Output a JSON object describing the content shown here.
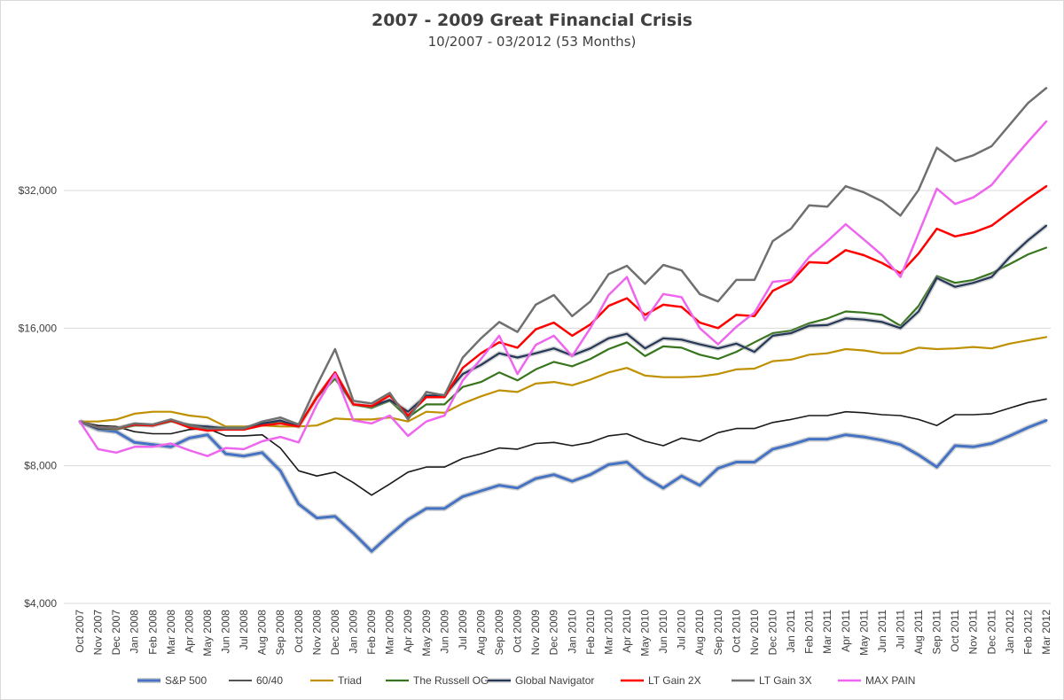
{
  "chart_data": {
    "type": "line",
    "title": "2007  - 2009 Great Financial Crisis",
    "subtitle": "10/2007 - 03/2012 (53 Months)",
    "xlabel": "",
    "ylabel": "",
    "y_scale": "log2",
    "ylim": [
      4000,
      64000
    ],
    "y_ticks": [
      4000,
      8000,
      16000,
      32000
    ],
    "y_tick_labels": [
      "$4,000",
      "$8,000",
      "$16,000",
      "$32,000"
    ],
    "grid": "horizontal",
    "legend_position": "bottom",
    "categories": [
      "Oct 2007",
      "Nov 2007",
      "Dec 2007",
      "Jan 2008",
      "Feb 2008",
      "Mar 2008",
      "Apr 2008",
      "May 2008",
      "Jun 2008",
      "Jul 2008",
      "Aug 2008",
      "Sep 2008",
      "Oct 2008",
      "Nov 2008",
      "Dec 2008",
      "Jan 2009",
      "Feb 2009",
      "Mar 2009",
      "Apr 2009",
      "May 2009",
      "Jun 2009",
      "Jul 2009",
      "Aug 2009",
      "Sep 2009",
      "Oct 2009",
      "Nov 2009",
      "Dec 2009",
      "Jan 2010",
      "Feb 2010",
      "Mar 2010",
      "Apr 2010",
      "May 2010",
      "Jun 2010",
      "Jul 2010",
      "Aug 2010",
      "Sep 2010",
      "Oct 2010",
      "Nov 2010",
      "Dec 2010",
      "Jan 2011",
      "Feb 2011",
      "Mar 2011",
      "Apr 2011",
      "May 2011",
      "Jun 2011",
      "Jul 2011",
      "Aug 2011",
      "Sep 2011",
      "Oct 2011",
      "Nov 2011",
      "Dec 2011",
      "Jan 2012",
      "Feb 2012",
      "Mar 2012"
    ],
    "series": [
      {
        "name": "S&P 500",
        "color": "#4472c4",
        "width": 3,
        "halo": true,
        "values": [
          10000,
          9600,
          9500,
          9000,
          8900,
          8800,
          9200,
          9350,
          8500,
          8400,
          8550,
          7800,
          6600,
          6150,
          6200,
          5700,
          5200,
          5650,
          6100,
          6450,
          6450,
          6850,
          7050,
          7250,
          7150,
          7500,
          7650,
          7400,
          7650,
          8050,
          8150,
          7550,
          7150,
          7600,
          7250,
          7900,
          8150,
          8150,
          8700,
          8900,
          9150,
          9150,
          9350,
          9250,
          9100,
          8900,
          8450,
          7950,
          8850,
          8800,
          8950,
          9300,
          9700,
          10050
        ]
      },
      {
        "name": "60/40",
        "color": "#1a1a1a",
        "width": 1.6,
        "halo": false,
        "values": [
          10000,
          9800,
          9750,
          9500,
          9400,
          9400,
          9600,
          9650,
          9300,
          9300,
          9350,
          8750,
          7800,
          7600,
          7750,
          7350,
          6900,
          7300,
          7750,
          7950,
          7950,
          8300,
          8500,
          8750,
          8700,
          8950,
          9000,
          8850,
          9000,
          9300,
          9400,
          9050,
          8850,
          9200,
          9050,
          9450,
          9650,
          9650,
          9950,
          10100,
          10300,
          10300,
          10500,
          10450,
          10350,
          10300,
          10100,
          9800,
          10350,
          10350,
          10400,
          10700,
          11000,
          11200
        ]
      },
      {
        "name": "Triad",
        "color": "#bf9000",
        "width": 2.2,
        "halo": false,
        "values": [
          10000,
          10000,
          10100,
          10400,
          10500,
          10500,
          10300,
          10200,
          9750,
          9750,
          9800,
          9750,
          9750,
          9800,
          10150,
          10100,
          10100,
          10200,
          10000,
          10500,
          10450,
          10950,
          11350,
          11700,
          11600,
          12100,
          12200,
          12000,
          12350,
          12800,
          13100,
          12600,
          12500,
          12500,
          12550,
          12700,
          13000,
          13050,
          13550,
          13650,
          14000,
          14100,
          14400,
          14300,
          14100,
          14100,
          14500,
          14400,
          14450,
          14550,
          14450,
          14800,
          15050,
          15300
        ]
      },
      {
        "name": "The Russell OG",
        "color": "#38761d",
        "width": 2.2,
        "halo": false,
        "values": [
          10000,
          9650,
          9600,
          9800,
          9800,
          10000,
          9850,
          9700,
          9700,
          9700,
          9900,
          10000,
          9800,
          11300,
          12400,
          10900,
          10700,
          11100,
          10200,
          10900,
          10900,
          11900,
          12200,
          12800,
          12300,
          13000,
          13500,
          13200,
          13700,
          14400,
          14900,
          13900,
          14600,
          14500,
          14000,
          13700,
          14200,
          14900,
          15600,
          15800,
          16400,
          16800,
          17400,
          17300,
          17100,
          16200,
          17900,
          20800,
          20100,
          20400,
          21100,
          22100,
          23200,
          24000
        ]
      },
      {
        "name": "Global Navigator",
        "color": "#253858",
        "width": 2.2,
        "halo": true,
        "values": [
          10000,
          9650,
          9650,
          9850,
          9800,
          10050,
          9800,
          9750,
          9650,
          9650,
          9900,
          10050,
          9750,
          11300,
          12700,
          10900,
          10800,
          11150,
          10500,
          11400,
          11400,
          12700,
          13300,
          14100,
          13800,
          14100,
          14450,
          13950,
          14450,
          15200,
          15550,
          14450,
          15200,
          15100,
          14750,
          14450,
          14800,
          14200,
          15400,
          15600,
          16200,
          16250,
          16800,
          16700,
          16500,
          16000,
          17400,
          20600,
          19700,
          20100,
          20700,
          22900,
          24900,
          26800
        ]
      },
      {
        "name": "LT Gain 2X",
        "color": "#ff0000",
        "width": 2.5,
        "halo": false,
        "values": [
          10000,
          9700,
          9650,
          9850,
          9800,
          10050,
          9700,
          9550,
          9600,
          9600,
          9800,
          9900,
          9750,
          11300,
          12800,
          10900,
          10800,
          11400,
          10300,
          11300,
          11300,
          13100,
          14100,
          14900,
          14500,
          15900,
          16450,
          15400,
          16300,
          17900,
          18600,
          17100,
          18000,
          17800,
          16450,
          16000,
          17100,
          17000,
          19300,
          20200,
          22300,
          22200,
          23700,
          23100,
          22200,
          21100,
          23300,
          26400,
          25400,
          25900,
          26800,
          28700,
          30700,
          32700
        ]
      },
      {
        "name": "LT Gain 3X",
        "color": "#707070",
        "width": 2.5,
        "halo": false,
        "values": [
          10000,
          9700,
          9650,
          9900,
          9850,
          10100,
          9800,
          9650,
          9650,
          9650,
          10000,
          10200,
          9850,
          12000,
          14400,
          11100,
          10950,
          11550,
          10100,
          11600,
          11400,
          13800,
          15200,
          16500,
          15700,
          18000,
          18900,
          17000,
          18300,
          21000,
          21900,
          20000,
          22000,
          21400,
          19000,
          18300,
          20400,
          20400,
          24800,
          26400,
          29700,
          29500,
          32700,
          31700,
          30300,
          28200,
          32100,
          39700,
          37100,
          38200,
          40000,
          44600,
          49700,
          53600
        ]
      },
      {
        "name": "MAX PAIN",
        "color": "#ee66ee",
        "width": 2.5,
        "halo": false,
        "values": [
          10000,
          8700,
          8550,
          8800,
          8800,
          8950,
          8650,
          8400,
          8750,
          8700,
          9050,
          9250,
          9000,
          10900,
          12700,
          10050,
          9900,
          10300,
          9300,
          10000,
          10300,
          12300,
          13700,
          15400,
          12700,
          14700,
          15400,
          13900,
          16000,
          18900,
          20700,
          16650,
          19000,
          18700,
          16000,
          14750,
          16100,
          17300,
          20200,
          20400,
          22900,
          24800,
          27000,
          25000,
          23100,
          20700,
          25800,
          32300,
          29900,
          30900,
          32900,
          36800,
          40900,
          45300
        ]
      }
    ]
  }
}
